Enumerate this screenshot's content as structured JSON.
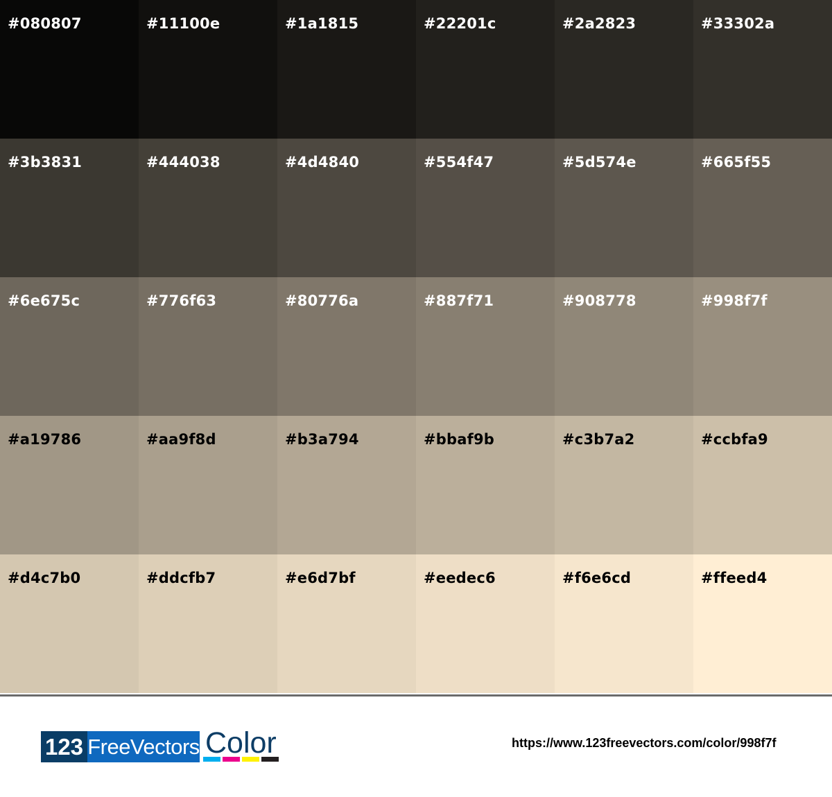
{
  "palette": {
    "rows": [
      [
        {
          "hex": "#080807",
          "label_color": "#ffffff"
        },
        {
          "hex": "#11100e",
          "label_color": "#ffffff"
        },
        {
          "hex": "#1a1815",
          "label_color": "#ffffff"
        },
        {
          "hex": "#22201c",
          "label_color": "#ffffff"
        },
        {
          "hex": "#2a2823",
          "label_color": "#ffffff"
        },
        {
          "hex": "#33302a",
          "label_color": "#ffffff"
        }
      ],
      [
        {
          "hex": "#3b3831",
          "label_color": "#ffffff"
        },
        {
          "hex": "#444038",
          "label_color": "#ffffff"
        },
        {
          "hex": "#4d4840",
          "label_color": "#ffffff"
        },
        {
          "hex": "#554f47",
          "label_color": "#ffffff"
        },
        {
          "hex": "#5d574e",
          "label_color": "#ffffff"
        },
        {
          "hex": "#665f55",
          "label_color": "#ffffff"
        }
      ],
      [
        {
          "hex": "#6e675c",
          "label_color": "#ffffff"
        },
        {
          "hex": "#776f63",
          "label_color": "#ffffff"
        },
        {
          "hex": "#80776a",
          "label_color": "#ffffff"
        },
        {
          "hex": "#887f71",
          "label_color": "#ffffff"
        },
        {
          "hex": "#908778",
          "label_color": "#ffffff"
        },
        {
          "hex": "#998f7f",
          "label_color": "#ffffff"
        }
      ],
      [
        {
          "hex": "#a19786",
          "label_color": "#000000"
        },
        {
          "hex": "#aa9f8d",
          "label_color": "#000000"
        },
        {
          "hex": "#b3a794",
          "label_color": "#000000"
        },
        {
          "hex": "#bbaf9b",
          "label_color": "#000000"
        },
        {
          "hex": "#c3b7a2",
          "label_color": "#000000"
        },
        {
          "hex": "#ccbfa9",
          "label_color": "#000000"
        }
      ],
      [
        {
          "hex": "#d4c7b0",
          "label_color": "#000000"
        },
        {
          "hex": "#ddcfb7",
          "label_color": "#000000"
        },
        {
          "hex": "#e6d7bf",
          "label_color": "#000000"
        },
        {
          "hex": "#eedec6",
          "label_color": "#000000"
        },
        {
          "hex": "#f6e6cd",
          "label_color": "#000000"
        },
        {
          "hex": "#ffeed4",
          "label_color": "#000000"
        }
      ]
    ]
  },
  "footer": {
    "logo": {
      "part1": "123",
      "part2": "FreeVectors",
      "part3": "Color",
      "bar_colors": [
        "#00aeef",
        "#ec008c",
        "#fff200",
        "#231f20"
      ]
    },
    "url": "https://www.123freevectors.com/color/998f7f"
  }
}
